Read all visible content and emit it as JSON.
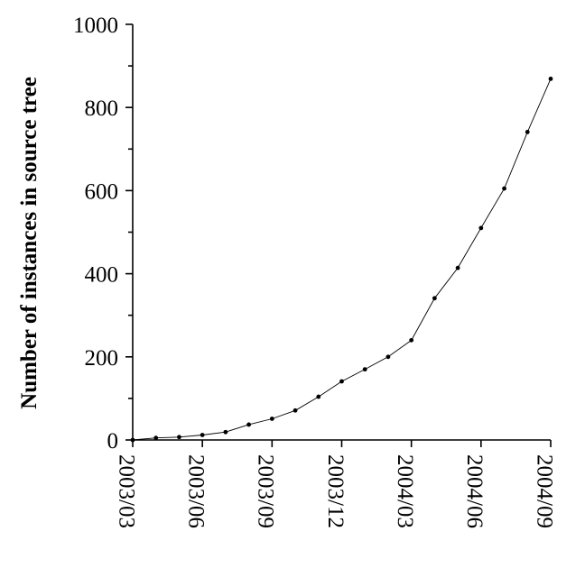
{
  "chart_data": {
    "type": "line",
    "title": "",
    "xlabel": "",
    "ylabel": "Number of instances in source tree",
    "x_tick_labels": [
      "2003/03",
      "2003/06",
      "2003/09",
      "2003/12",
      "2004/03",
      "2004/06",
      "2004/09"
    ],
    "y_tick_labels": [
      "0",
      "200",
      "400",
      "600",
      "800",
      "1000"
    ],
    "ylim": [
      0,
      1000
    ],
    "y_minor_step": 100,
    "xlim": [
      "2003/03",
      "2004/09"
    ],
    "grid": false,
    "legend": "none",
    "series": [
      {
        "x": [
          "2003/03",
          "2003/04",
          "2003/05",
          "2003/06",
          "2003/07",
          "2003/08",
          "2003/09",
          "2003/10",
          "2003/11",
          "2003/12",
          "2004/01",
          "2004/02",
          "2004/03",
          "2004/04",
          "2004/05",
          "2004/06",
          "2004/07",
          "2004/08",
          "2004/09"
        ],
        "values": [
          0,
          5,
          7,
          12,
          19,
          37,
          51,
          71,
          104,
          141,
          170,
          200,
          240,
          341,
          414,
          510,
          605,
          741,
          869
        ]
      }
    ],
    "colors": {
      "line": "#000000",
      "axis": "#000000"
    }
  }
}
